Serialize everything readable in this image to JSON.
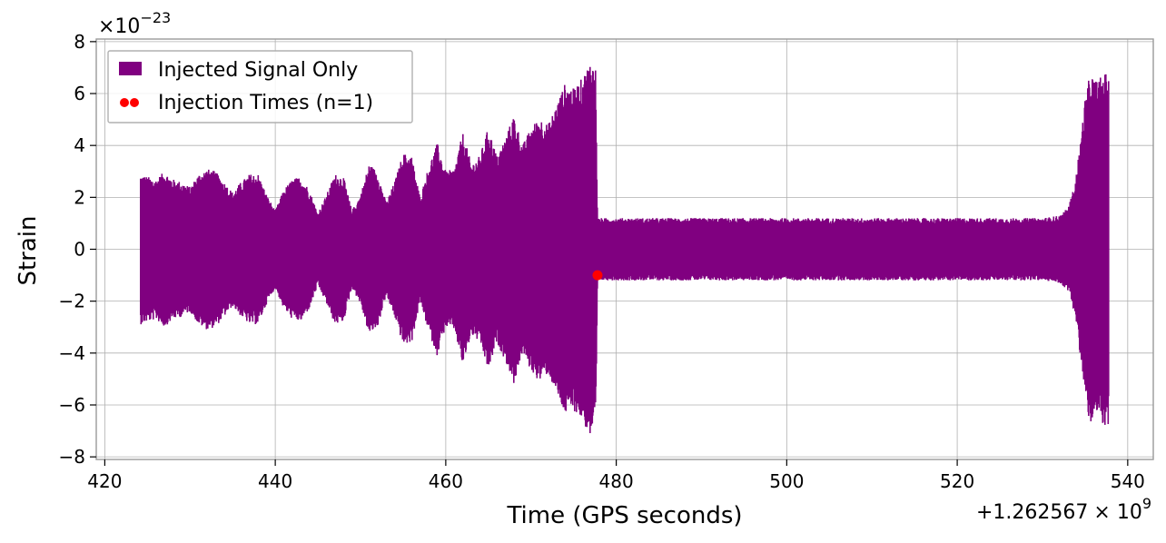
{
  "chart_data": {
    "type": "line",
    "xlabel": "Time (GPS seconds)",
    "ylabel": "Strain",
    "x_offset_label": "+1.262567",
    "x_offset_exp_base": "× 10",
    "x_offset_exp": "9",
    "y_scale_base": "×10",
    "y_scale_exp": "−23",
    "xlim": [
      419,
      543
    ],
    "ylim": [
      -8.1,
      8.1
    ],
    "x_ticks": [
      420,
      440,
      460,
      480,
      500,
      520,
      540
    ],
    "x_tick_labels": [
      "420",
      "440",
      "460",
      "480",
      "500",
      "520",
      "540"
    ],
    "y_ticks": [
      -8,
      -6,
      -4,
      -2,
      0,
      2,
      4,
      6,
      8
    ],
    "y_tick_labels": [
      "−8",
      "−6",
      "−4",
      "−2",
      "0",
      "2",
      "4",
      "6",
      "8"
    ],
    "grid": true,
    "legend_position": "top-left",
    "series": [
      {
        "name": "Injected Signal Only",
        "kind": "signal",
        "color": "#800080",
        "x_range": [
          424.2,
          537.8
        ],
        "envelope": [
          [
            424.2,
            2.9
          ],
          [
            425.0,
            2.8
          ],
          [
            426.0,
            2.7
          ],
          [
            427.0,
            3.0
          ],
          [
            428.0,
            2.7
          ],
          [
            429.0,
            2.6
          ],
          [
            430.0,
            2.4
          ],
          [
            431.0,
            2.9
          ],
          [
            432.0,
            3.1
          ],
          [
            433.0,
            3.0
          ],
          [
            434.0,
            2.6
          ],
          [
            435.0,
            2.2
          ],
          [
            436.0,
            2.6
          ],
          [
            437.0,
            2.9
          ],
          [
            438.0,
            2.9
          ],
          [
            439.0,
            2.1
          ],
          [
            440.0,
            1.5
          ],
          [
            441.0,
            2.3
          ],
          [
            442.0,
            2.7
          ],
          [
            443.0,
            2.8
          ],
          [
            444.0,
            2.3
          ],
          [
            445.0,
            1.4
          ],
          [
            446.0,
            2.1
          ],
          [
            447.0,
            2.9
          ],
          [
            448.0,
            2.8
          ],
          [
            449.0,
            1.5
          ],
          [
            450.0,
            2.1
          ],
          [
            451.0,
            3.3
          ],
          [
            452.0,
            3.0
          ],
          [
            453.0,
            1.8
          ],
          [
            454.0,
            2.6
          ],
          [
            455.0,
            3.7
          ],
          [
            456.0,
            3.6
          ],
          [
            457.0,
            2.0
          ],
          [
            458.0,
            3.2
          ],
          [
            459.0,
            4.1
          ],
          [
            460.0,
            3.0
          ],
          [
            461.0,
            3.1
          ],
          [
            462.0,
            4.5
          ],
          [
            463.0,
            3.3
          ],
          [
            464.0,
            3.6
          ],
          [
            465.0,
            4.7
          ],
          [
            466.0,
            3.6
          ],
          [
            467.0,
            4.3
          ],
          [
            468.0,
            5.2
          ],
          [
            469.0,
            4.0
          ],
          [
            470.0,
            4.7
          ],
          [
            471.0,
            5.1
          ],
          [
            472.0,
            4.8
          ],
          [
            473.0,
            5.6
          ],
          [
            474.0,
            6.4
          ],
          [
            475.0,
            6.2
          ],
          [
            476.0,
            6.6
          ],
          [
            477.0,
            7.3
          ],
          [
            477.6,
            7.0
          ],
          [
            477.8,
            1.2
          ],
          [
            480.0,
            1.2
          ],
          [
            485.0,
            1.2
          ],
          [
            490.0,
            1.2
          ],
          [
            495.0,
            1.2
          ],
          [
            500.0,
            1.2
          ],
          [
            505.0,
            1.2
          ],
          [
            510.0,
            1.2
          ],
          [
            515.0,
            1.2
          ],
          [
            520.0,
            1.2
          ],
          [
            525.0,
            1.2
          ],
          [
            530.0,
            1.2
          ],
          [
            532.0,
            1.3
          ],
          [
            533.0,
            1.6
          ],
          [
            533.8,
            2.5
          ],
          [
            534.4,
            4.0
          ],
          [
            535.0,
            5.8
          ],
          [
            535.6,
            6.8
          ],
          [
            536.3,
            6.5
          ],
          [
            537.0,
            6.7
          ],
          [
            537.8,
            6.9
          ]
        ]
      },
      {
        "name": "Injection Times (n=1)",
        "kind": "markers",
        "color": "#ff0000",
        "points": [
          [
            477.8,
            -1.0
          ]
        ]
      }
    ]
  }
}
